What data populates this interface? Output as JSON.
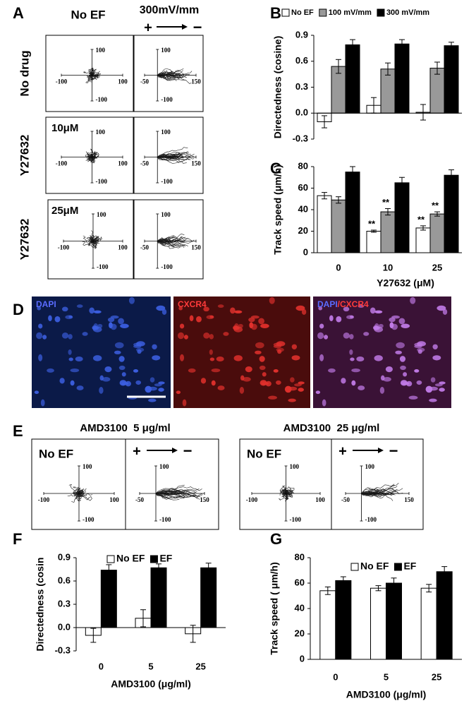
{
  "panel_labels": [
    "A",
    "B",
    "C",
    "D",
    "E",
    "F",
    "G"
  ],
  "panel_a": {
    "column_titles": [
      "No EF",
      "300mV/mm"
    ],
    "plus": "+",
    "minus": "−",
    "rows": [
      {
        "label": "No drug",
        "plots": [
          {
            "xlim": [
              -100,
              100
            ],
            "ylim": [
              -100,
              100
            ],
            "xticks": [
              -100,
              100
            ],
            "yticks": [
              100,
              -100
            ]
          },
          {
            "xlim": [
              -50,
              150
            ],
            "ylim": [
              -100,
              100
            ],
            "xticks": [
              -50,
              150
            ],
            "yticks": [
              100,
              -100
            ]
          }
        ]
      },
      {
        "label": "Y27632",
        "dose": "10μM",
        "plots": [
          {
            "xlim": [
              -100,
              100
            ],
            "ylim": [
              -100,
              100
            ],
            "xticks": [
              -100,
              100
            ],
            "yticks": [
              100,
              -100
            ]
          },
          {
            "xlim": [
              -50,
              150
            ],
            "ylim": [
              -100,
              100
            ],
            "xticks": [
              -50,
              150
            ],
            "yticks": [
              100,
              -100
            ]
          }
        ]
      },
      {
        "label": "Y27632",
        "dose": "25μM",
        "plots": [
          {
            "xlim": [
              -100,
              100
            ],
            "ylim": [
              -100,
              100
            ],
            "xticks": [
              -100,
              100
            ],
            "yticks": [
              100,
              -100
            ]
          },
          {
            "xlim": [
              -50,
              150
            ],
            "ylim": [
              -100,
              100
            ],
            "xticks": [
              -50,
              150
            ],
            "yticks": [
              100,
              -100
            ]
          }
        ]
      }
    ]
  },
  "panel_d": {
    "images": [
      {
        "label": [
          {
            "text": "DAPI",
            "color": "#5a6cff"
          }
        ],
        "background": "#0b1a48",
        "cell": "#3c5fe0"
      },
      {
        "label": [
          {
            "text": "CXCR4",
            "color": "#ff3b3b"
          }
        ],
        "background": "#4a0c0c",
        "cell": "#e0302c"
      },
      {
        "label": [
          {
            "text": "DAPI",
            "color": "#5a6cff"
          },
          {
            "text": "/CXCR4",
            "color": "#ff3b3b"
          }
        ],
        "background": "#3a1236",
        "cell": "#c07ae6"
      }
    ]
  },
  "panel_e": {
    "groups": [
      {
        "title": "AMD3100  5 μg/ml",
        "plots": [
          {
            "label": "No EF",
            "xlim": [
              -100,
              100
            ],
            "ylim": [
              -100,
              100
            ],
            "xticks": [
              -100,
              100
            ],
            "yticks": [
              100,
              -100
            ]
          },
          {
            "plus": "+",
            "minus": "−",
            "xlim": [
              -50,
              150
            ],
            "ylim": [
              -100,
              100
            ],
            "xticks": [
              -50,
              150
            ],
            "yticks": [
              100,
              -100
            ]
          }
        ]
      },
      {
        "title": "AMD3100  25 μg/ml",
        "plots": [
          {
            "label": "No EF",
            "xlim": [
              -100,
              100
            ],
            "ylim": [
              -100,
              100
            ],
            "xticks": [
              -100,
              100
            ],
            "yticks": [
              100,
              -100
            ]
          },
          {
            "plus": "+",
            "minus": "−",
            "xlim": [
              -50,
              150
            ],
            "ylim": [
              -100,
              100
            ],
            "xticks": [
              -50,
              150
            ],
            "yticks": [
              100,
              -100
            ]
          }
        ]
      }
    ]
  },
  "chart_data": [
    {
      "type": "bar",
      "ylabel": "Directedness (cosine)",
      "categories": [
        null,
        null,
        null
      ],
      "ylim": [
        -0.3,
        0.9
      ],
      "yticks": [
        -0.3,
        {
          "value": 0,
          "label": "0.0"
        },
        0.3,
        0.6,
        0.9
      ],
      "legend": "top",
      "series": [
        {
          "name": "No EF",
          "color": "#ffffff",
          "values": [
            -0.1,
            0.09,
            0.01
          ],
          "errors": [
            0.07,
            0.09,
            0.09
          ]
        },
        {
          "name": "100 mV/mm",
          "color": "#999999",
          "values": [
            0.54,
            0.51,
            0.52
          ],
          "errors": [
            0.08,
            0.07,
            0.07
          ]
        },
        {
          "name": "300 mV/mm",
          "color": "#000000",
          "values": [
            0.79,
            0.8,
            0.78
          ],
          "errors": [
            0.06,
            0.05,
            0.04
          ]
        }
      ]
    },
    {
      "type": "bar",
      "ylabel": "Track speed (μm/h)",
      "xlabel": "Y27632 (μM)",
      "categories": [
        "0",
        "10",
        "25"
      ],
      "ylim": [
        0,
        80
      ],
      "yticks": [
        0,
        20,
        40,
        60,
        80
      ],
      "series": [
        {
          "color": "#ffffff",
          "values": [
            53,
            20,
            23
          ],
          "errors": [
            3,
            1,
            2
          ],
          "annotations": [
            null,
            "**",
            "**"
          ]
        },
        {
          "color": "#999999",
          "values": [
            49,
            38,
            36
          ],
          "errors": [
            3,
            3,
            2
          ],
          "annotations": [
            null,
            "**",
            "**"
          ]
        },
        {
          "color": "#000000",
          "values": [
            75,
            65,
            72
          ],
          "errors": [
            5,
            5,
            5
          ]
        }
      ]
    },
    {
      "type": "bar",
      "ylabel": "Directedness (cosin",
      "xlabel": "AMD3100 (μg/ml)",
      "categories": [
        "0",
        "5",
        "25"
      ],
      "ylim": [
        -0.3,
        0.9
      ],
      "yticks": [
        -0.3,
        {
          "value": 0,
          "label": "0.0"
        },
        0.3,
        0.6,
        0.9
      ],
      "legend": "top",
      "series": [
        {
          "name": "No EF",
          "color": "#ffffff",
          "values": [
            -0.1,
            0.12,
            -0.08
          ],
          "errors": [
            0.09,
            0.11,
            0.11
          ]
        },
        {
          "name": "EF",
          "color": "#000000",
          "values": [
            0.74,
            0.77,
            0.77
          ],
          "errors": [
            0.07,
            0.05,
            0.06
          ]
        }
      ]
    },
    {
      "type": "bar",
      "ylabel": "Track speed ( μm/h)",
      "xlabel": "AMD3100 (μg/ml)",
      "categories": [
        "0",
        "5",
        "25"
      ],
      "ylim": [
        0,
        80
      ],
      "yticks": [
        0,
        20,
        40,
        60,
        80
      ],
      "legend": "top",
      "series": [
        {
          "name": "No EF",
          "color": "#ffffff",
          "values": [
            54,
            56,
            56
          ],
          "errors": [
            3,
            2,
            3
          ]
        },
        {
          "name": "EF",
          "color": "#000000",
          "values": [
            62,
            60,
            69
          ],
          "errors": [
            3,
            4,
            4
          ]
        }
      ]
    }
  ]
}
